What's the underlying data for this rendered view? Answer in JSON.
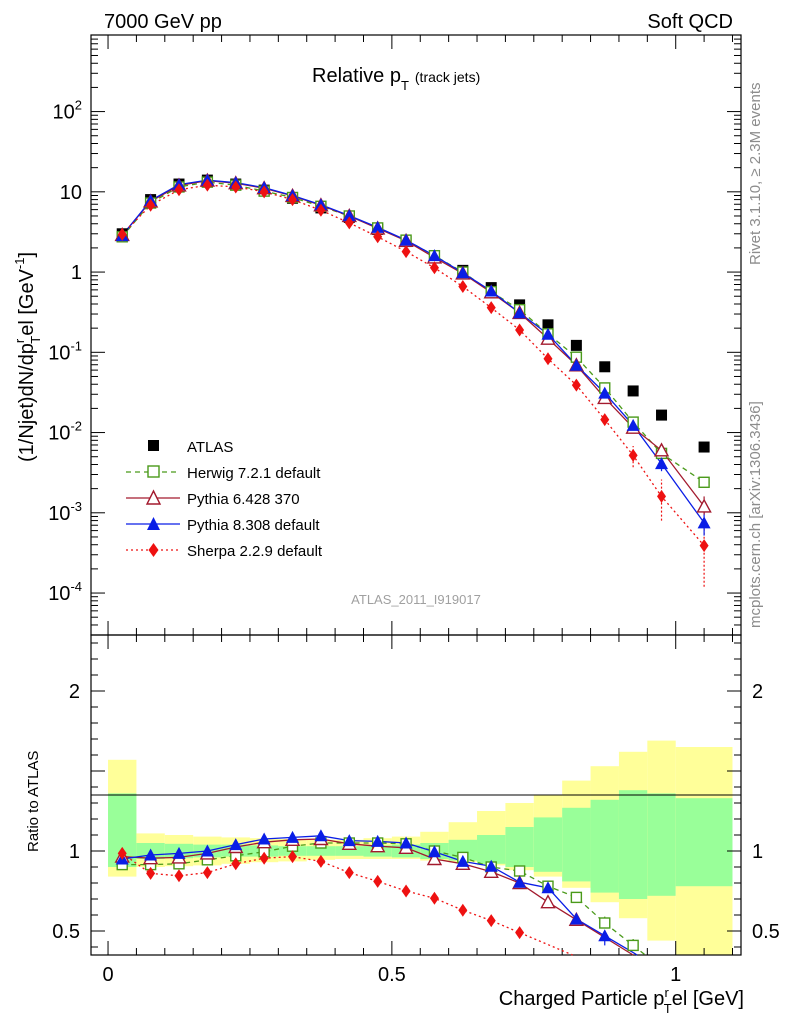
{
  "header": {
    "left": "7000 GeV pp",
    "right": "Soft QCD"
  },
  "side_labels": {
    "rivet": "Rivet 3.1.10, ≥ 2.3M events",
    "mcplots": "mcplots.cern.ch [arXiv:1306.3436]"
  },
  "colors": {
    "atlas": "#000000",
    "herwig": "#4a9a1a",
    "pythia6": "#a31a2e",
    "pythia8": "#0a1ee6",
    "sherpa": "#ee1111",
    "band_yellow": "#ffff99",
    "band_green": "#99ff99"
  },
  "chart_data": {
    "type": "scatter",
    "title": "Relative p",
    "title_sub": "T",
    "title_suffix": "(track jets)",
    "watermark": "ATLAS_2011_I919017",
    "xlabel_main": "Charged Particle p",
    "xlabel_sub": "T",
    "xlabel_sup": "r",
    "xlabel_suffix": "el [GeV]",
    "ylabel": "(1/Njet)dN/dp",
    "ylabel_sup": "r",
    "ylabel_sub": "T",
    "ylabel_suffix": "el [GeV",
    "ylabel_unit_sup": "-1",
    "ylabel_close": "]",
    "ratio_ylabel": "Ratio to ATLAS",
    "xlim": [
      -0.03,
      1.115
    ],
    "ylim": [
      3e-05,
      900
    ],
    "ratio_ylim": [
      0.35,
      2.35
    ],
    "main_y_ticks": [
      {
        "value": 100,
        "base": "10",
        "exp": "2"
      },
      {
        "value": 10,
        "base": "10",
        "exp": ""
      },
      {
        "value": 1,
        "base": "1",
        "exp": ""
      },
      {
        "value": 0.1,
        "base": "10",
        "exp": "-1"
      },
      {
        "value": 0.01,
        "base": "10",
        "exp": "-2"
      },
      {
        "value": 0.001,
        "base": "10",
        "exp": "-3"
      },
      {
        "value": 0.0001,
        "base": "10",
        "exp": "-4"
      }
    ],
    "ratio_y_ticks": [
      {
        "value": 2,
        "label": "2"
      },
      {
        "value": 1,
        "label": "1"
      },
      {
        "value": 0.5,
        "label": "0.5"
      }
    ],
    "x_ticks": [
      {
        "value": 0,
        "label": "0"
      },
      {
        "value": 0.5,
        "label": "0.5"
      },
      {
        "value": 1,
        "label": "1"
      }
    ],
    "x": [
      0.025,
      0.075,
      0.125,
      0.175,
      0.225,
      0.275,
      0.325,
      0.375,
      0.425,
      0.475,
      0.525,
      0.575,
      0.625,
      0.675,
      0.725,
      0.775,
      0.825,
      0.875,
      0.925,
      0.975,
      1.05
    ],
    "series": [
      {
        "name": "ATLAS",
        "marker": "square-filled",
        "color_key": "atlas",
        "values": [
          3.0,
          8.0,
          12.5,
          14.0,
          12.5,
          10.5,
          8.3,
          6.3,
          4.8,
          3.4,
          2.4,
          1.6,
          1.05,
          0.64,
          0.39,
          0.22,
          0.122,
          0.066,
          0.033,
          0.0165,
          0.0066
        ]
      },
      {
        "name": "Herwig 7.2.1 default",
        "marker": "square-open",
        "line": "dashed",
        "color_key": "herwig",
        "values": [
          2.75,
          7.25,
          11.5,
          13.2,
          12.1,
          10.2,
          8.5,
          6.6,
          5.0,
          3.55,
          2.5,
          1.6,
          1.0,
          0.57,
          0.34,
          0.17,
          0.087,
          0.036,
          0.0135,
          0.0055,
          0.0024
        ]
      },
      {
        "name": "Pythia 6.428 370",
        "marker": "triangle-open",
        "line": "solid",
        "color_key": "pythia6",
        "values": [
          2.9,
          7.6,
          12.0,
          13.8,
          12.8,
          11.1,
          8.9,
          6.8,
          5.0,
          3.5,
          2.45,
          1.52,
          0.96,
          0.56,
          0.31,
          0.148,
          0.069,
          0.027,
          0.0115,
          0.006,
          0.0012
        ]
      },
      {
        "name": "Pythia 8.308 default",
        "marker": "triangle-filled",
        "line": "solid",
        "color_key": "pythia8",
        "values": [
          2.85,
          7.8,
          12.3,
          14.0,
          13.0,
          11.3,
          9.0,
          6.9,
          5.05,
          3.6,
          2.5,
          1.6,
          0.98,
          0.58,
          0.31,
          0.168,
          0.069,
          0.031,
          0.0123,
          0.0041,
          0.00075
        ]
      },
      {
        "name": "Sherpa 2.2.9 default",
        "marker": "diamond-filled",
        "line": "dotted",
        "color_key": "sherpa",
        "values": [
          2.95,
          6.8,
          10.6,
          12.1,
          11.5,
          10.0,
          8.0,
          5.9,
          4.1,
          2.75,
          1.8,
          1.13,
          0.66,
          0.36,
          0.19,
          0.083,
          0.039,
          0.0145,
          0.0052,
          0.0016,
          0.00039
        ]
      }
    ],
    "ratio_series": [
      {
        "name": "Herwig 7.2.1 default",
        "values": [
          0.915,
          0.915,
          0.92,
          0.945,
          0.97,
          0.995,
          1.03,
          1.05,
          1.05,
          1.05,
          1.045,
          1.0,
          0.96,
          0.9,
          0.875,
          0.78,
          0.71,
          0.55,
          0.41
        ]
      },
      {
        "name": "Pythia 6.428 370",
        "values": [
          0.965,
          0.955,
          0.96,
          0.985,
          1.025,
          1.055,
          1.07,
          1.075,
          1.045,
          1.03,
          1.02,
          0.95,
          0.92,
          0.87,
          0.8,
          0.68,
          0.57
        ]
      },
      {
        "name": "Pythia 8.308 default",
        "values": [
          0.95,
          0.975,
          0.985,
          1.0,
          1.04,
          1.075,
          1.085,
          1.095,
          1.065,
          1.06,
          1.05,
          0.995,
          0.935,
          0.905,
          0.805,
          0.77,
          0.575,
          0.47
        ]
      },
      {
        "name": "Sherpa 2.2.9 default",
        "values": [
          0.985,
          0.86,
          0.845,
          0.865,
          0.92,
          0.955,
          0.965,
          0.935,
          0.865,
          0.81,
          0.75,
          0.705,
          0.63,
          0.565,
          0.49
        ]
      }
    ],
    "bands": {
      "edges": [
        0.0,
        0.05,
        0.1,
        0.15,
        0.2,
        0.25,
        0.3,
        0.35,
        0.4,
        0.45,
        0.5,
        0.55,
        0.6,
        0.65,
        0.7,
        0.75,
        0.8,
        0.85,
        0.9,
        0.95,
        1.0,
        1.1
      ],
      "yellow_lo": [
        0.84,
        0.9,
        0.905,
        0.91,
        0.92,
        0.93,
        0.935,
        0.945,
        0.95,
        0.95,
        0.95,
        0.94,
        0.93,
        0.91,
        0.88,
        0.84,
        0.77,
        0.68,
        0.58,
        0.44,
        0.35
      ],
      "yellow_hi": [
        1.57,
        1.11,
        1.1,
        1.09,
        1.085,
        1.08,
        1.075,
        1.07,
        1.07,
        1.08,
        1.09,
        1.12,
        1.18,
        1.25,
        1.3,
        1.35,
        1.44,
        1.53,
        1.62,
        1.69,
        1.65
      ],
      "green_lo": [
        0.9,
        0.95,
        0.955,
        0.96,
        0.965,
        0.965,
        0.97,
        0.97,
        0.97,
        0.965,
        0.96,
        0.95,
        0.94,
        0.92,
        0.9,
        0.87,
        0.81,
        0.74,
        0.7,
        0.72,
        0.78
      ],
      "green_hi": [
        1.36,
        1.05,
        1.045,
        1.04,
        1.04,
        1.035,
        1.03,
        1.03,
        1.03,
        1.035,
        1.04,
        1.05,
        1.07,
        1.1,
        1.15,
        1.21,
        1.27,
        1.32,
        1.38,
        1.36,
        1.33
      ]
    }
  }
}
